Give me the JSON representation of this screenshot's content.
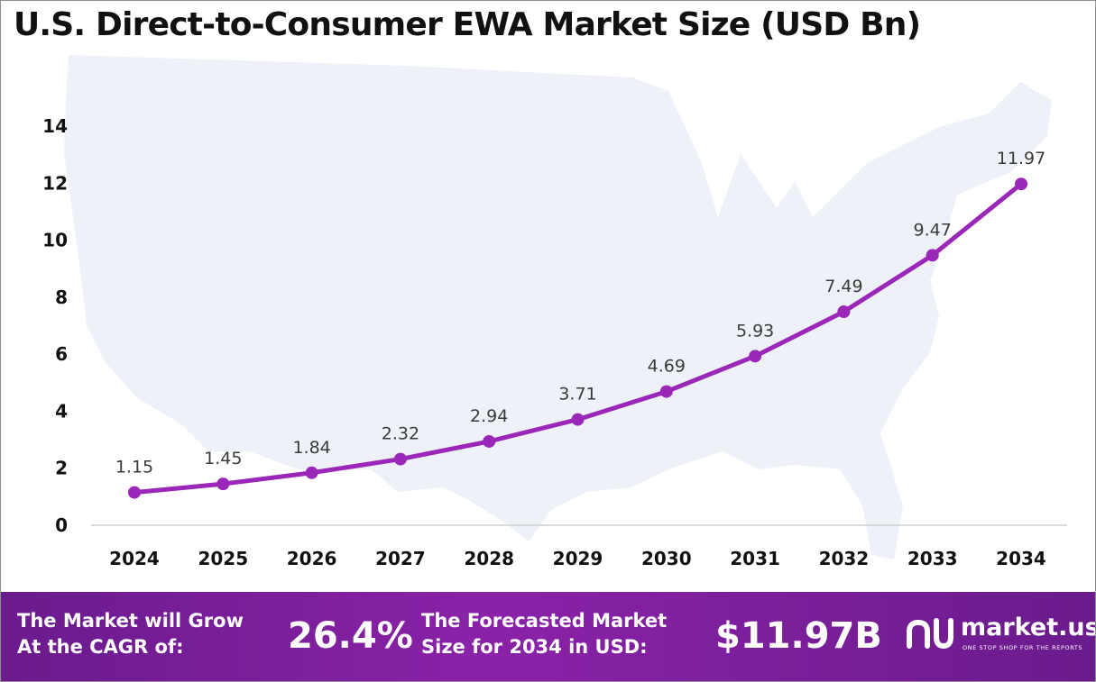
{
  "chart_data": {
    "type": "line",
    "title": "U.S. Direct-to-Consumer EWA Market Size (USD Bn)",
    "x": [
      "2024",
      "2025",
      "2026",
      "2027",
      "2028",
      "2029",
      "2030",
      "2031",
      "2032",
      "2033",
      "2034"
    ],
    "series": [
      {
        "values": [
          1.15,
          1.45,
          1.84,
          2.32,
          2.94,
          3.71,
          4.69,
          5.93,
          7.49,
          9.47,
          11.97
        ]
      }
    ],
    "data_labels": [
      "1.15",
      "1.45",
      "1.84",
      "2.32",
      "2.94",
      "3.71",
      "4.69",
      "5.93",
      "7.49",
      "9.47",
      "11.97"
    ],
    "y_ticks": [
      "0",
      "2",
      "4",
      "6",
      "8",
      "10",
      "12",
      "14"
    ],
    "ylim": [
      0,
      14
    ],
    "grid": false,
    "legend": "none",
    "line_color": "#9b27b8",
    "background_image": "usa-map"
  },
  "footer": {
    "cagr_text_line1": "The Market will Grow",
    "cagr_text_line2": "At the CAGR of:",
    "cagr_value": "26.4%",
    "forecast_text_line1": "The Forecasted Market",
    "forecast_text_line2": "Size for 2034 in USD:",
    "forecast_value": "$11.97B",
    "logo_name": "market.us",
    "logo_tagline": "ONE STOP SHOP FOR THE REPORTS",
    "logo_icon": "market-us-logo-icon"
  }
}
